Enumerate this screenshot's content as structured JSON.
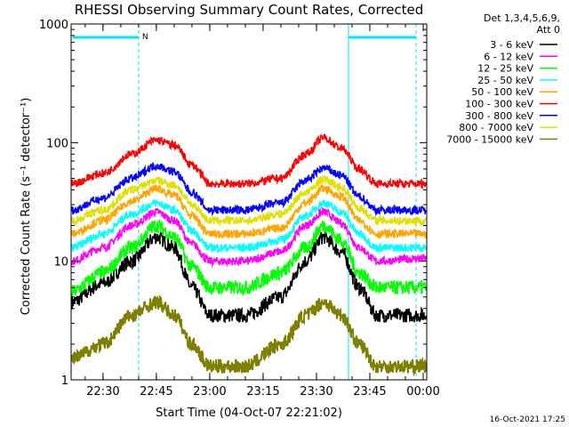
{
  "chart_data": {
    "type": "line",
    "title": "RHESSI Observing Summary Count Rates, Corrected",
    "xlabel": "Start Time (04-Oct-07 22:21:02)",
    "ylabel": "Corrected Count Rate (s⁻¹ detector⁻¹)",
    "y_scale": "log",
    "ylim": [
      1,
      1000
    ],
    "xlim": [
      "22:21:02",
      "00:01:00"
    ],
    "x_ticks": [
      "22:30",
      "22:45",
      "23:00",
      "23:15",
      "23:30",
      "23:45",
      "00:00"
    ],
    "y_ticks": [
      "1",
      "10",
      "100",
      "1000"
    ],
    "legend_header": [
      "Det 1,3,4,5,6,9,",
      "Att 0"
    ],
    "legend_placement": "right",
    "annotation_marker": "N",
    "timestamp": "16-Oct-2021 17:25",
    "series": [
      {
        "name": "3 - 6 keV",
        "color": "#000000",
        "points": [
          [
            "22:21",
            4.5
          ],
          [
            "22:30",
            6.5
          ],
          [
            "22:38",
            10
          ],
          [
            "22:45",
            16
          ],
          [
            "22:50",
            13
          ],
          [
            "22:55",
            6
          ],
          [
            "23:00",
            3.5
          ],
          [
            "23:10",
            3.5
          ],
          [
            "23:20",
            5
          ],
          [
            "23:27",
            10
          ],
          [
            "23:32",
            16
          ],
          [
            "23:37",
            12
          ],
          [
            "23:42",
            6
          ],
          [
            "23:47",
            3.5
          ],
          [
            "23:58",
            3.5
          ]
        ]
      },
      {
        "name": "6 - 12 keV",
        "color": "#ff00ff",
        "points": [
          [
            "22:21",
            10
          ],
          [
            "22:30",
            13
          ],
          [
            "22:38",
            20
          ],
          [
            "22:45",
            26
          ],
          [
            "22:50",
            22
          ],
          [
            "22:55",
            14
          ],
          [
            "23:00",
            10
          ],
          [
            "23:10",
            10
          ],
          [
            "23:20",
            12
          ],
          [
            "23:27",
            20
          ],
          [
            "23:32",
            26
          ],
          [
            "23:37",
            21
          ],
          [
            "23:42",
            13
          ],
          [
            "23:47",
            10
          ],
          [
            "23:58",
            10.5
          ]
        ]
      },
      {
        "name": "12 - 25 keV",
        "color": "#00ff00",
        "points": [
          [
            "22:21",
            5.5
          ],
          [
            "22:30",
            8
          ],
          [
            "22:38",
            13
          ],
          [
            "22:45",
            20
          ],
          [
            "22:50",
            16
          ],
          [
            "22:55",
            9
          ],
          [
            "23:00",
            6
          ],
          [
            "23:10",
            6
          ],
          [
            "23:20",
            8
          ],
          [
            "23:27",
            13
          ],
          [
            "23:32",
            20
          ],
          [
            "23:37",
            15
          ],
          [
            "23:42",
            8
          ],
          [
            "23:47",
            6
          ],
          [
            "23:58",
            6
          ]
        ]
      },
      {
        "name": "25 - 50 keV",
        "color": "#00ffff",
        "points": [
          [
            "22:21",
            13
          ],
          [
            "22:30",
            17
          ],
          [
            "22:38",
            25
          ],
          [
            "22:45",
            31
          ],
          [
            "22:50",
            27
          ],
          [
            "22:55",
            18
          ],
          [
            "23:00",
            13
          ],
          [
            "23:10",
            13
          ],
          [
            "23:20",
            15
          ],
          [
            "23:27",
            24
          ],
          [
            "23:32",
            31
          ],
          [
            "23:37",
            26
          ],
          [
            "23:42",
            17
          ],
          [
            "23:47",
            13
          ],
          [
            "23:58",
            13
          ]
        ]
      },
      {
        "name": "50 - 100 keV",
        "color": "#ffa500",
        "points": [
          [
            "22:21",
            17
          ],
          [
            "22:30",
            22
          ],
          [
            "22:38",
            32
          ],
          [
            "22:45",
            41
          ],
          [
            "22:50",
            36
          ],
          [
            "22:55",
            24
          ],
          [
            "23:00",
            17
          ],
          [
            "23:10",
            17
          ],
          [
            "23:20",
            19
          ],
          [
            "23:27",
            31
          ],
          [
            "23:32",
            41
          ],
          [
            "23:37",
            35
          ],
          [
            "23:42",
            22
          ],
          [
            "23:47",
            17
          ],
          [
            "23:58",
            17
          ]
        ]
      },
      {
        "name": "100 - 300 keV",
        "color": "#ff0000",
        "points": [
          [
            "22:21",
            45
          ],
          [
            "22:30",
            55
          ],
          [
            "22:38",
            80
          ],
          [
            "22:45",
            105
          ],
          [
            "22:50",
            95
          ],
          [
            "22:55",
            65
          ],
          [
            "23:00",
            45
          ],
          [
            "23:10",
            45
          ],
          [
            "23:20",
            50
          ],
          [
            "23:27",
            80
          ],
          [
            "23:32",
            110
          ],
          [
            "23:37",
            90
          ],
          [
            "23:42",
            60
          ],
          [
            "23:47",
            45
          ],
          [
            "23:58",
            45
          ]
        ]
      },
      {
        "name": "300 - 800 keV",
        "color": "#0000ff",
        "points": [
          [
            "22:21",
            27
          ],
          [
            "22:30",
            34
          ],
          [
            "22:38",
            50
          ],
          [
            "22:45",
            64
          ],
          [
            "22:50",
            57
          ],
          [
            "22:55",
            38
          ],
          [
            "23:00",
            27
          ],
          [
            "23:10",
            27
          ],
          [
            "23:20",
            31
          ],
          [
            "23:27",
            48
          ],
          [
            "23:32",
            61
          ],
          [
            "23:37",
            53
          ],
          [
            "23:42",
            35
          ],
          [
            "23:47",
            27
          ],
          [
            "23:58",
            27
          ]
        ]
      },
      {
        "name": "800 - 7000 keV",
        "color": "#e0e000",
        "points": [
          [
            "22:21",
            22
          ],
          [
            "22:30",
            27
          ],
          [
            "22:38",
            40
          ],
          [
            "22:45",
            48
          ],
          [
            "22:50",
            44
          ],
          [
            "22:55",
            30
          ],
          [
            "23:00",
            22
          ],
          [
            "23:10",
            22
          ],
          [
            "23:20",
            25
          ],
          [
            "23:27",
            38
          ],
          [
            "23:32",
            49
          ],
          [
            "23:37",
            42
          ],
          [
            "23:42",
            28
          ],
          [
            "23:47",
            22
          ],
          [
            "23:58",
            22
          ]
        ]
      },
      {
        "name": "7000 - 15000 keV",
        "color": "#808000",
        "points": [
          [
            "22:21",
            1.5
          ],
          [
            "22:30",
            2
          ],
          [
            "22:38",
            3.5
          ],
          [
            "22:45",
            4.5
          ],
          [
            "22:50",
            3.5
          ],
          [
            "22:55",
            2
          ],
          [
            "23:00",
            1.3
          ],
          [
            "23:10",
            1.3
          ],
          [
            "23:20",
            2
          ],
          [
            "23:27",
            3.5
          ],
          [
            "23:32",
            4.5
          ],
          [
            "23:37",
            3.5
          ],
          [
            "23:42",
            2
          ],
          [
            "23:47",
            1.3
          ],
          [
            "23:58",
            1.3
          ]
        ]
      }
    ]
  }
}
